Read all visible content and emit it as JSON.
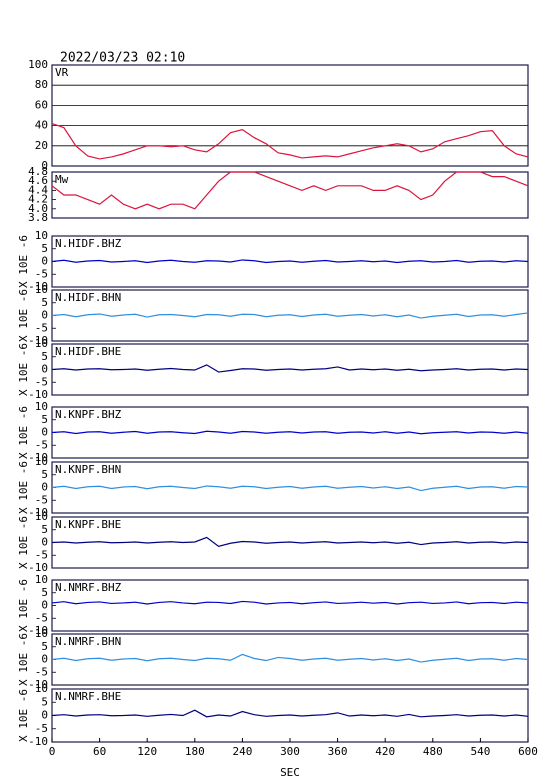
{
  "chart_data": [
    {
      "type": "line",
      "title": "2022/03/23 02:10",
      "label": "VR",
      "color": "#dc143c",
      "grid": true,
      "xlim": [
        0,
        600
      ],
      "ylim": [
        0,
        100
      ],
      "yticks": [
        0,
        20,
        40,
        60,
        80,
        100
      ],
      "x": [
        0,
        15,
        30,
        45,
        60,
        75,
        90,
        105,
        120,
        135,
        150,
        165,
        180,
        195,
        210,
        225,
        240,
        255,
        270,
        285,
        300,
        315,
        330,
        345,
        360,
        375,
        390,
        405,
        420,
        435,
        450,
        465,
        480,
        495,
        510,
        525,
        540,
        555,
        570,
        585,
        600
      ],
      "values": [
        42,
        38,
        20,
        10,
        7,
        9,
        12,
        16,
        20,
        20,
        19,
        20,
        16,
        14,
        22,
        33,
        36,
        28,
        22,
        13,
        11,
        8,
        9,
        10,
        9,
        12,
        15,
        18,
        20,
        22,
        20,
        14,
        17,
        24,
        27,
        30,
        34,
        35,
        20,
        12,
        9
      ]
    },
    {
      "type": "line",
      "label": "Mw",
      "color": "#dc143c",
      "grid": false,
      "xlim": [
        0,
        600
      ],
      "ylim": [
        3.8,
        4.8
      ],
      "yticks": [
        3.8,
        {
          "value": 4,
          "label": "4.0"
        },
        4.2,
        4.4,
        4.6,
        4.8
      ],
      "x": [
        0,
        15,
        30,
        45,
        60,
        75,
        90,
        105,
        120,
        135,
        150,
        165,
        180,
        195,
        210,
        225,
        240,
        255,
        270,
        285,
        300,
        315,
        330,
        345,
        360,
        375,
        390,
        405,
        420,
        435,
        450,
        465,
        480,
        495,
        510,
        525,
        540,
        555,
        570,
        585,
        600
      ],
      "values": [
        4.5,
        4.3,
        4.3,
        4.2,
        4.1,
        4.3,
        4.1,
        4.0,
        4.1,
        4.0,
        4.1,
        4.1,
        4.0,
        4.3,
        4.6,
        4.8,
        4.8,
        4.8,
        4.7,
        4.6,
        4.5,
        4.4,
        4.5,
        4.4,
        4.5,
        4.5,
        4.5,
        4.4,
        4.4,
        4.5,
        4.4,
        4.2,
        4.3,
        4.6,
        4.8,
        4.8,
        4.8,
        4.7,
        4.7,
        4.6,
        4.5
      ]
    },
    {
      "type": "line",
      "label": "N.HIDF.BHZ",
      "ylabel": "X 10E -6",
      "color": "#0000cd",
      "xlim": [
        0,
        600
      ],
      "ylim": [
        -10,
        10
      ],
      "yticks": [
        -10,
        -5,
        0,
        5,
        10
      ],
      "x": [
        0,
        15,
        30,
        45,
        60,
        75,
        90,
        105,
        120,
        135,
        150,
        165,
        180,
        195,
        210,
        225,
        240,
        255,
        270,
        285,
        300,
        315,
        330,
        345,
        360,
        375,
        390,
        405,
        420,
        435,
        450,
        465,
        480,
        495,
        510,
        525,
        540,
        555,
        570,
        585,
        600
      ],
      "values": [
        0,
        0.5,
        -0.3,
        0.2,
        0.4,
        -0.2,
        0,
        0.3,
        -0.4,
        0.2,
        0.5,
        0,
        -0.3,
        0.3,
        0.2,
        -0.2,
        0.6,
        0.3,
        -0.4,
        0,
        0.2,
        -0.3,
        0.1,
        0.4,
        -0.2,
        0,
        0.3,
        -0.1,
        0.2,
        -0.4,
        0.1,
        0.3,
        -0.2,
        0,
        0.4,
        -0.3,
        0.1,
        0.2,
        -0.2,
        0.3,
        0
      ]
    },
    {
      "type": "line",
      "label": "N.HIDF.BHN",
      "ylabel": "X 10E -6",
      "color": "#2f8fe0",
      "xlim": [
        0,
        600
      ],
      "ylim": [
        -10,
        10
      ],
      "yticks": [
        -10,
        -5,
        0,
        5,
        10
      ],
      "x": [
        0,
        15,
        30,
        45,
        60,
        75,
        90,
        105,
        120,
        135,
        150,
        165,
        180,
        195,
        210,
        225,
        240,
        255,
        270,
        285,
        300,
        315,
        330,
        345,
        360,
        375,
        390,
        405,
        420,
        435,
        450,
        465,
        480,
        495,
        510,
        525,
        540,
        555,
        570,
        585,
        600
      ],
      "values": [
        0,
        0.4,
        -0.5,
        0.3,
        0.6,
        -0.3,
        0.2,
        0.5,
        -0.6,
        0.3,
        0.4,
        0,
        -0.5,
        0.4,
        0.3,
        -0.3,
        0.5,
        0.4,
        -0.5,
        0.1,
        0.3,
        -0.4,
        0.2,
        0.5,
        -0.3,
        0.1,
        0.4,
        -0.2,
        0.3,
        -0.5,
        0.2,
        -1,
        -0.3,
        0.1,
        0.5,
        -0.4,
        0.2,
        0.3,
        -0.3,
        0.4,
        1
      ]
    },
    {
      "type": "line",
      "label": "N.HIDF.BHE",
      "ylabel": "X 10E -6",
      "color": "#000080",
      "xlim": [
        0,
        600
      ],
      "ylim": [
        -10,
        10
      ],
      "yticks": [
        -10,
        -5,
        0,
        5,
        10
      ],
      "x": [
        0,
        15,
        30,
        45,
        60,
        75,
        90,
        105,
        120,
        135,
        150,
        165,
        180,
        195,
        210,
        225,
        240,
        255,
        270,
        285,
        300,
        315,
        330,
        345,
        360,
        375,
        390,
        405,
        420,
        435,
        450,
        465,
        480,
        495,
        510,
        525,
        540,
        555,
        570,
        585,
        600
      ],
      "values": [
        0,
        0.3,
        -0.2,
        0.2,
        0.3,
        -0.1,
        0,
        0.2,
        -0.3,
        0.1,
        0.4,
        0,
        -0.2,
        1.8,
        -1,
        -0.4,
        0.3,
        0.2,
        -0.3,
        0,
        0.2,
        -0.2,
        0.1,
        0.3,
        1,
        -0.2,
        0.2,
        -0.1,
        0.2,
        -0.3,
        0.1,
        -0.5,
        -0.2,
        0,
        0.3,
        -0.2,
        0.1,
        0.2,
        -0.2,
        0.2,
        0
      ]
    },
    {
      "type": "line",
      "label": "N.KNPF.BHZ",
      "ylabel": "X 10E -6",
      "color": "#0000cd",
      "xlim": [
        0,
        600
      ],
      "ylim": [
        -10,
        10
      ],
      "yticks": [
        -10,
        -5,
        0,
        5,
        10
      ],
      "x": [
        0,
        15,
        30,
        45,
        60,
        75,
        90,
        105,
        120,
        135,
        150,
        165,
        180,
        195,
        210,
        225,
        240,
        255,
        270,
        285,
        300,
        315,
        330,
        345,
        360,
        375,
        390,
        405,
        420,
        435,
        450,
        465,
        480,
        495,
        510,
        525,
        540,
        555,
        570,
        585,
        600
      ],
      "values": [
        0,
        0.3,
        -0.4,
        0.2,
        0.3,
        -0.3,
        0.1,
        0.4,
        -0.3,
        0.2,
        0.3,
        -0.1,
        -0.4,
        0.5,
        0.2,
        -0.3,
        0.4,
        0.2,
        -0.3,
        0.1,
        0.3,
        -0.2,
        0.2,
        0.3,
        -0.3,
        0.1,
        0.2,
        -0.2,
        0.3,
        -0.3,
        0.2,
        -0.5,
        -0.1,
        0.1,
        0.3,
        -0.2,
        0.2,
        0.1,
        -0.3,
        0.2,
        -0.3
      ]
    },
    {
      "type": "line",
      "label": "N.KNPF.BHN",
      "ylabel": "X 10E -6",
      "color": "#2f8fe0",
      "xlim": [
        0,
        600
      ],
      "ylim": [
        -10,
        10
      ],
      "yticks": [
        -10,
        -5,
        0,
        5,
        10
      ],
      "x": [
        0,
        15,
        30,
        45,
        60,
        75,
        90,
        105,
        120,
        135,
        150,
        165,
        180,
        195,
        210,
        225,
        240,
        255,
        270,
        285,
        300,
        315,
        330,
        345,
        360,
        375,
        390,
        405,
        420,
        435,
        450,
        465,
        480,
        495,
        510,
        525,
        540,
        555,
        570,
        585,
        600
      ],
      "values": [
        0,
        0.5,
        -0.4,
        0.3,
        0.5,
        -0.4,
        0.2,
        0.4,
        -0.5,
        0.3,
        0.5,
        0,
        -0.4,
        0.6,
        0.3,
        -0.3,
        0.5,
        0.3,
        -0.4,
        0.1,
        0.4,
        -0.3,
        0.2,
        0.5,
        -0.3,
        0.1,
        0.4,
        -0.2,
        0.3,
        -0.4,
        0.2,
        -1.2,
        -0.3,
        0.1,
        0.5,
        -0.4,
        0.2,
        0.3,
        -0.3,
        0.4,
        0.2
      ]
    },
    {
      "type": "line",
      "label": "N.KNPF.BHE",
      "ylabel": "X 10E -6",
      "color": "#000080",
      "xlim": [
        0,
        600
      ],
      "ylim": [
        -10,
        10
      ],
      "yticks": [
        -10,
        -5,
        0,
        5,
        10
      ],
      "x": [
        0,
        15,
        30,
        45,
        60,
        75,
        90,
        105,
        120,
        135,
        150,
        165,
        180,
        195,
        210,
        225,
        240,
        255,
        270,
        285,
        300,
        315,
        330,
        345,
        360,
        375,
        390,
        405,
        420,
        435,
        450,
        465,
        480,
        495,
        510,
        525,
        540,
        555,
        570,
        585,
        600
      ],
      "values": [
        0,
        0.2,
        -0.2,
        0.1,
        0.3,
        -0.1,
        0,
        0.2,
        -0.2,
        0.1,
        0.3,
        0,
        0.2,
        2,
        -1.5,
        -0.3,
        0.4,
        0.2,
        -0.3,
        0,
        0.2,
        -0.2,
        0.1,
        0.3,
        -0.2,
        0,
        0.2,
        -0.1,
        0.2,
        -0.3,
        0.1,
        -0.8,
        -0.2,
        0,
        0.3,
        -0.2,
        0.1,
        0.2,
        -0.2,
        0.2,
        0
      ]
    },
    {
      "type": "line",
      "label": "N.NMRF.BHZ",
      "ylabel": "X 10E -6",
      "color": "#0000cd",
      "xlim": [
        0,
        600
      ],
      "ylim": [
        -10,
        10
      ],
      "yticks": [
        -10,
        -5,
        0,
        5,
        10
      ],
      "x": [
        0,
        15,
        30,
        45,
        60,
        75,
        90,
        105,
        120,
        135,
        150,
        165,
        180,
        195,
        210,
        225,
        240,
        255,
        270,
        285,
        300,
        315,
        330,
        345,
        360,
        375,
        390,
        405,
        420,
        435,
        450,
        465,
        480,
        495,
        510,
        525,
        540,
        555,
        570,
        585,
        600
      ],
      "values": [
        1,
        1.5,
        0.7,
        1.2,
        1.4,
        0.8,
        1,
        1.3,
        0.6,
        1.2,
        1.5,
        1,
        0.7,
        1.3,
        1.2,
        0.8,
        1.6,
        1.3,
        0.6,
        1,
        1.2,
        0.7,
        1.1,
        1.4,
        0.8,
        1,
        1.3,
        0.9,
        1.2,
        0.6,
        1.1,
        1.3,
        0.8,
        1,
        1.4,
        0.7,
        1.1,
        1.2,
        0.8,
        1.3,
        1
      ]
    },
    {
      "type": "line",
      "label": "N.NMRF.BHN",
      "ylabel": "X 10E -6",
      "color": "#2f8fe0",
      "xlim": [
        0,
        600
      ],
      "ylim": [
        -10,
        10
      ],
      "yticks": [
        -10,
        -5,
        0,
        5,
        10
      ],
      "x": [
        0,
        15,
        30,
        45,
        60,
        75,
        90,
        105,
        120,
        135,
        150,
        165,
        180,
        195,
        210,
        225,
        240,
        255,
        270,
        285,
        300,
        315,
        330,
        345,
        360,
        375,
        390,
        405,
        420,
        435,
        450,
        465,
        480,
        495,
        510,
        525,
        540,
        555,
        570,
        585,
        600
      ],
      "values": [
        0,
        0.5,
        -0.4,
        0.3,
        0.5,
        -0.3,
        0.2,
        0.4,
        -0.5,
        0.3,
        0.5,
        0,
        -0.4,
        0.5,
        0.3,
        -0.3,
        2,
        0.4,
        -0.4,
        0.8,
        0.4,
        -0.3,
        0.2,
        0.5,
        -0.3,
        0.1,
        0.4,
        -0.2,
        0.3,
        -0.4,
        0.2,
        -1,
        -0.3,
        0.1,
        0.5,
        -0.4,
        0.2,
        0.3,
        -0.3,
        0.4,
        0
      ]
    },
    {
      "type": "line",
      "label": "N.NMRF.BHE",
      "ylabel": "X 10E -6",
      "color": "#000080",
      "xlim": [
        0,
        600
      ],
      "ylim": [
        -10,
        10
      ],
      "yticks": [
        -10,
        -5,
        0,
        5,
        10
      ],
      "xticks": [
        0,
        60,
        120,
        180,
        240,
        300,
        360,
        420,
        480,
        540,
        600
      ],
      "xlabel": "SEC",
      "x": [
        0,
        15,
        30,
        45,
        60,
        75,
        90,
        105,
        120,
        135,
        150,
        165,
        180,
        195,
        210,
        225,
        240,
        255,
        270,
        285,
        300,
        315,
        330,
        345,
        360,
        375,
        390,
        405,
        420,
        435,
        450,
        465,
        480,
        495,
        510,
        525,
        540,
        555,
        570,
        585,
        600
      ],
      "values": [
        0,
        0.3,
        -0.2,
        0.2,
        0.3,
        -0.1,
        0,
        0.2,
        -0.3,
        0.1,
        0.4,
        0,
        2,
        -0.5,
        0.2,
        -0.2,
        1.5,
        0.3,
        -0.3,
        0,
        0.2,
        -0.2,
        0.1,
        0.3,
        1,
        -0.2,
        0.2,
        -0.1,
        0.2,
        -0.3,
        0.4,
        -0.5,
        -0.2,
        0,
        0.3,
        -0.2,
        0.1,
        0.2,
        -0.2,
        0.2,
        -0.3
      ]
    }
  ]
}
